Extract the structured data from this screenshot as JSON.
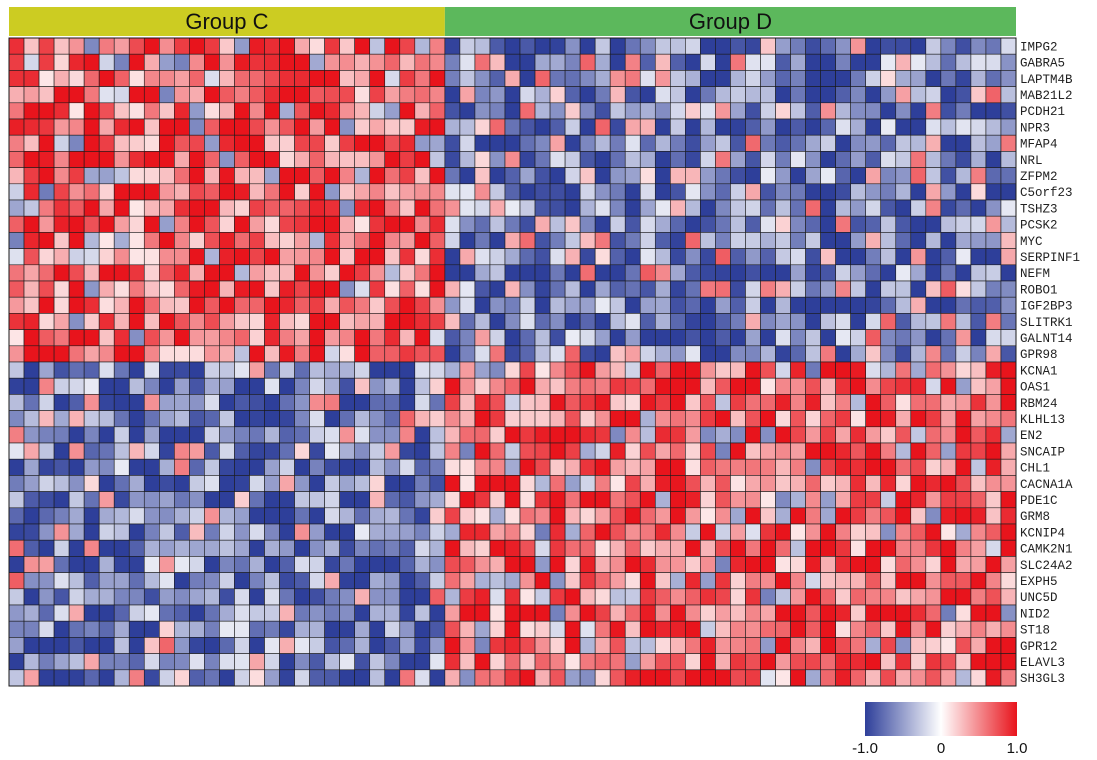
{
  "chart_data": {
    "type": "heatmap",
    "title": "",
    "xlabel": "",
    "ylabel": "",
    "groups": [
      {
        "name": "Group C",
        "samples": 29,
        "color": "#cccc22"
      },
      {
        "name": "Group D",
        "samples": 38,
        "color": "#5cb85c"
      }
    ],
    "genes": [
      "IMPG2",
      "GABRA5",
      "LAPTM4B",
      "MAB21L2",
      "PCDH21",
      "NPR3",
      "MFAP4",
      "NRL",
      "ZFPM2",
      "C5orf23",
      "TSHZ3",
      "PCSK2",
      "MYC",
      "SERPINF1",
      "NEFM",
      "ROBO1",
      "IGF2BP3",
      "SLITRK1",
      "GALNT14",
      "GPR98",
      "KCNA1",
      "OAS1",
      "RBM24",
      "KLHL13",
      "EN2",
      "SNCAIP",
      "CHL1",
      "CACNA1A",
      "PDE1C",
      "GRM8",
      "KCNIP4",
      "CAMK2N1",
      "SLC24A2",
      "EXPH5",
      "UNC5D",
      "NID2",
      "ST18",
      "GPR12",
      "ELAVL3",
      "SH3GL3"
    ],
    "pattern": {
      "upregulated_in_C_gene_count": 20,
      "upregulated_in_D_gene_count": 20,
      "high_value": 0.7,
      "low_value": -0.7
    },
    "value_range": [
      -1.0,
      1.0
    ],
    "colorscale": [
      "#2e3f9a",
      "#ffffff",
      "#e8141c"
    ],
    "legend": {
      "placement": "bottom-right",
      "ticks": [
        "-1.0",
        "0",
        "1.0"
      ]
    }
  }
}
